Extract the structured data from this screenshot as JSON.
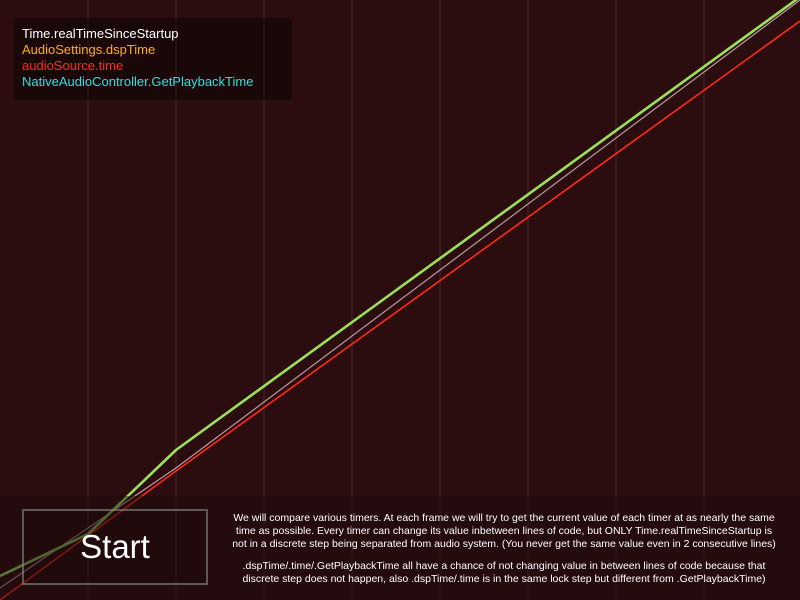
{
  "colors": {
    "background": "#2b0d10",
    "grid": "#4a2a2e",
    "realtime": "#ffffff",
    "dsp": "#ffa500",
    "audiosource": "#ff2a1a",
    "native": "#1ed6d6",
    "overlap": "#9be05a"
  },
  "legend": {
    "items": [
      {
        "label": "Time.realTimeSinceStartup",
        "color": "#ffffff"
      },
      {
        "label": "AudioSettings.dspTime",
        "color": "#ffb000"
      },
      {
        "label": "audioSource.time",
        "color": "#ff2a1a"
      },
      {
        "label": "NativeAudioController.GetPlaybackTime",
        "color": "#2fe0e0"
      }
    ]
  },
  "start_button": {
    "label": "Start"
  },
  "description": {
    "paragraph1": "We will compare various timers. At each frame we will try to get the current value of each timer at as nearly the same time as possible. Every timer can change its value inbetween lines of code, but ONLY Time.realTimeSinceStartup is not in a discrete step being separated from audio system. (You never get the same value even in 2 consecutive lines)",
    "paragraph2": ".dspTime/.time/.GetPlaybackTime all have a chance of not changing value in between lines of code because that discrete step does not happen, also .dspTime/.time is in the same lock step but different from .GetPlaybackTime)"
  },
  "chart_data": {
    "type": "line",
    "x_domain": [
      0,
      100
    ],
    "y_domain": [
      0,
      100
    ],
    "series": [
      {
        "name": "Time.realTimeSinceStartup",
        "color": "#b89aa0",
        "width": 1.2,
        "points": [
          [
            0,
            2
          ],
          [
            22,
            22
          ],
          [
            100,
            100
          ]
        ]
      },
      {
        "name": "audioSource.time",
        "color": "#ff2a1a",
        "width": 1.6,
        "points": [
          [
            0,
            0
          ],
          [
            22,
            21.5
          ],
          [
            100,
            96.5
          ]
        ]
      },
      {
        "name": "AudioSettings.dspTime",
        "color": "#f0b000",
        "width": 1.6,
        "points": [
          [
            0,
            4
          ],
          [
            11,
            11
          ],
          [
            22,
            25
          ],
          [
            100,
            100.5
          ]
        ]
      },
      {
        "name": "NativeAudioController.GetPlaybackTime",
        "color": "#9be05a",
        "width": 2.6,
        "points": [
          [
            0,
            4
          ],
          [
            11,
            11
          ],
          [
            22,
            25
          ],
          [
            100,
            100.5
          ]
        ]
      }
    ]
  }
}
